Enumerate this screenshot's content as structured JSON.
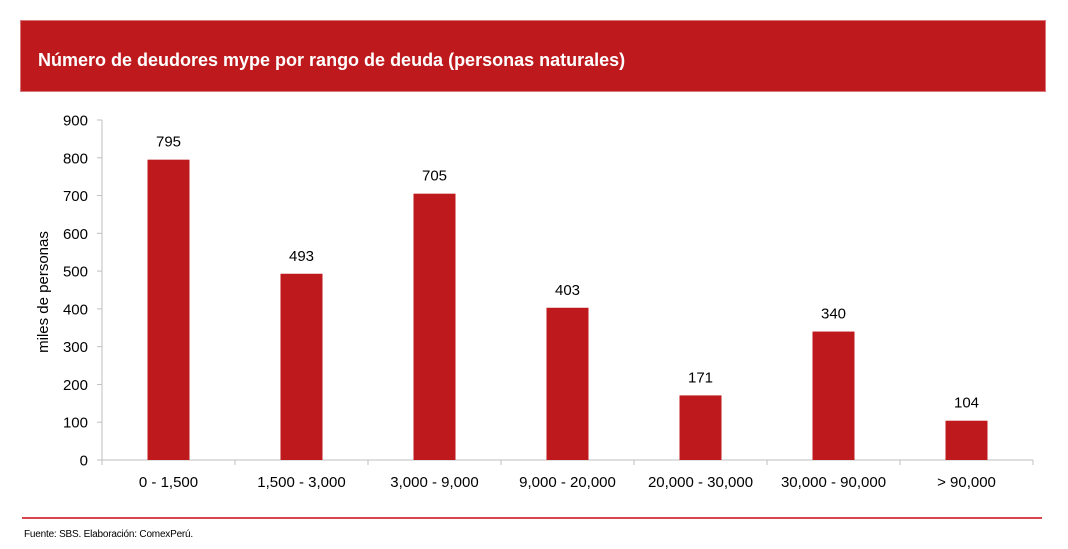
{
  "header": {
    "title": "Número de deudores mype por rango de deuda (personas naturales)"
  },
  "footer": {
    "source": "Fuente: SBS. Elaboración: ComexPerú."
  },
  "colors": {
    "bar": "#BE1A1D",
    "banner": "#BE1A1D",
    "axis": "#BFBFBF",
    "footer_line": "#D9474D"
  },
  "chart_data": {
    "type": "bar",
    "title": "Número de deudores mype por rango de deuda (personas naturales)",
    "xlabel": "",
    "ylabel": "miles de personas",
    "ylim": [
      0,
      900
    ],
    "yticks": [
      0,
      100,
      200,
      300,
      400,
      500,
      600,
      700,
      800,
      900
    ],
    "grid": false,
    "categories": [
      "0 - 1,500",
      "1,500 - 3,000",
      "3,000 - 9,000",
      "9,000 - 20,000",
      "20,000 - 30,000",
      "30,000 - 90,000",
      "> 90,000"
    ],
    "values": [
      795,
      493,
      705,
      403,
      171,
      340,
      104
    ],
    "data_labels": [
      "795",
      "493",
      "705",
      "403",
      "171",
      "340",
      "104"
    ]
  }
}
